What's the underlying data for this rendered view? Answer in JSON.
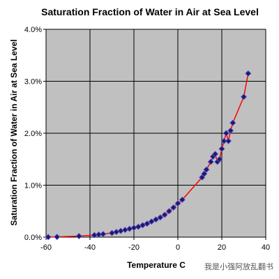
{
  "chart_data": {
    "type": "line",
    "title": "Saturation Fraction of Water in Air at Sea Level",
    "xlabel": "Temperature C",
    "ylabel": "Saturation Fraction of Water in Air at Sea Level",
    "xlim": [
      -60,
      40
    ],
    "ylim": [
      0,
      4.0
    ],
    "x_ticks": [
      "-60",
      "-40",
      "-20",
      "0",
      "20",
      "40"
    ],
    "y_ticks": [
      "0.0%",
      "1.0%",
      "2.0%",
      "3.0%",
      "4.0%"
    ],
    "grid": true,
    "legend": "none",
    "colors": {
      "plot_background": "#c0c0c0",
      "line": "#ff0000",
      "marker_fill": "#1a1a6e",
      "grid": "#000000"
    },
    "series": [
      {
        "marker": "diamond",
        "x": [
          -59,
          -55,
          -45,
          -38,
          -36,
          -34,
          -30,
          -28,
          -26,
          -24,
          -22,
          -20,
          -18,
          -16,
          -14,
          -12,
          -10,
          -8,
          -6,
          -4,
          -2,
          0,
          2,
          11,
          12,
          13,
          15,
          16,
          17,
          18,
          19,
          20,
          21,
          22,
          23,
          24,
          25,
          30,
          32
        ],
        "y": [
          0.002,
          0.005,
          0.02,
          0.04,
          0.05,
          0.06,
          0.08,
          0.1,
          0.12,
          0.14,
          0.16,
          0.18,
          0.2,
          0.23,
          0.26,
          0.3,
          0.34,
          0.38,
          0.43,
          0.5,
          0.57,
          0.65,
          0.72,
          1.15,
          1.22,
          1.3,
          1.45,
          1.55,
          1.6,
          1.45,
          1.5,
          1.7,
          1.85,
          2.0,
          1.85,
          2.05,
          2.2,
          2.7,
          3.15
        ]
      }
    ]
  },
  "watermark": "我是小强阿放乱翻书"
}
